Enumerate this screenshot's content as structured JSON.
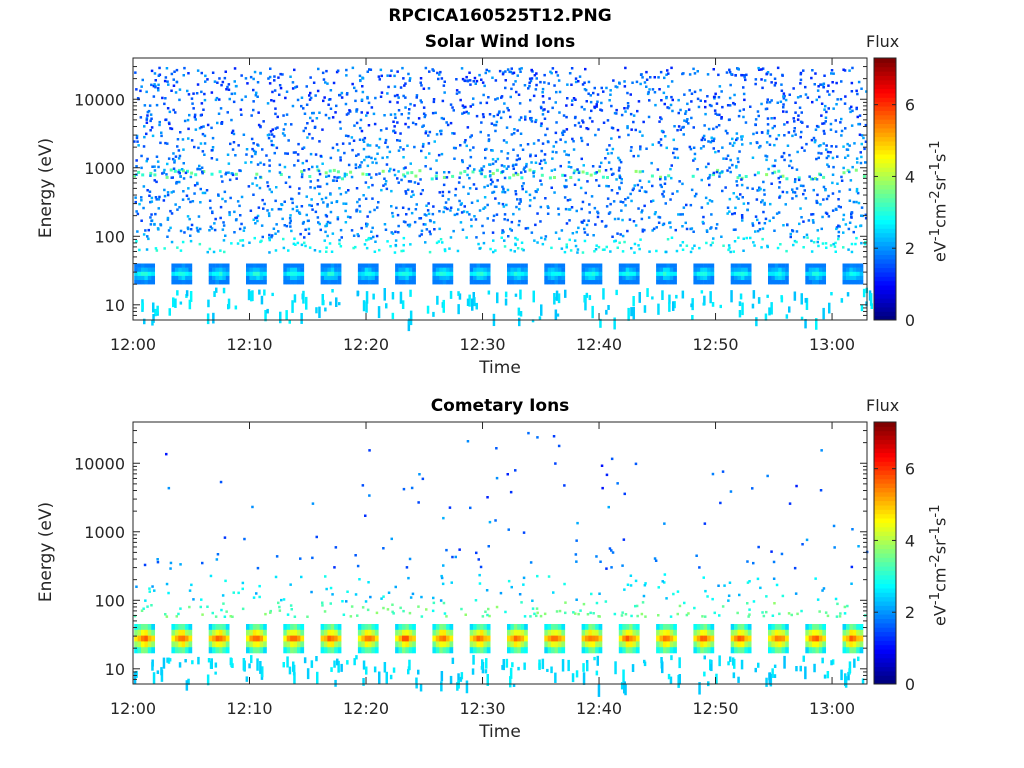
{
  "figure_title": "RPCICA160525T12.PNG",
  "colorbar": {
    "title": "Flux",
    "unit_html": "eV<sup>-1</sup>cm<sup>-2</sup>sr<sup>-1</sup>s<sup>-1</sup>",
    "ticks": [
      "0",
      "2",
      "4",
      "6"
    ],
    "range": [
      0,
      7.3
    ],
    "colormap": "jet"
  },
  "chart_data": [
    {
      "type": "heatmap",
      "title": "Solar Wind Ions",
      "xlabel": "Time",
      "ylabel": "Energy (eV)",
      "x_ticks": [
        "12:00",
        "12:10",
        "12:20",
        "12:30",
        "12:40",
        "12:50",
        "13:00"
      ],
      "x_range": [
        "12:00",
        "13:03"
      ],
      "y_ticks": [
        "10",
        "100",
        "1000",
        "10000"
      ],
      "y_scale": "log",
      "y_range": [
        6,
        40000
      ],
      "sweep_period_min": 3.2,
      "bands": [
        {
          "energy_eV": [
            20,
            40
          ],
          "flux": 3.0
        },
        {
          "energy_eV": [
            6,
            18
          ],
          "flux": 2.5
        }
      ],
      "features": [
        {
          "energy_eV": 850,
          "flux": 3.0
        },
        {
          "energy_eV": [
            60,
            30000
          ],
          "flux": 1.3,
          "note_scatter": true
        }
      ]
    },
    {
      "type": "heatmap",
      "title": "Cometary Ions",
      "xlabel": "Time",
      "ylabel": "Energy (eV)",
      "x_ticks": [
        "12:00",
        "12:10",
        "12:20",
        "12:30",
        "12:40",
        "12:50",
        "13:00"
      ],
      "x_range": [
        "12:00",
        "13:03"
      ],
      "y_ticks": [
        "10",
        "100",
        "1000",
        "10000"
      ],
      "y_scale": "log",
      "y_range": [
        6,
        40000
      ],
      "sweep_period_min": 3.2,
      "bands": [
        {
          "energy_eV": [
            17,
            45
          ],
          "flux": 5.8
        },
        {
          "energy_eV": [
            6,
            16
          ],
          "flux": 2.5
        }
      ],
      "features": [
        {
          "energy_eV": [
            60,
            250
          ],
          "flux": 2.0,
          "note_scatter": true
        },
        {
          "energy_eV": [
            300,
            30000
          ],
          "flux": 1.2,
          "note_scatter": true
        }
      ]
    }
  ]
}
